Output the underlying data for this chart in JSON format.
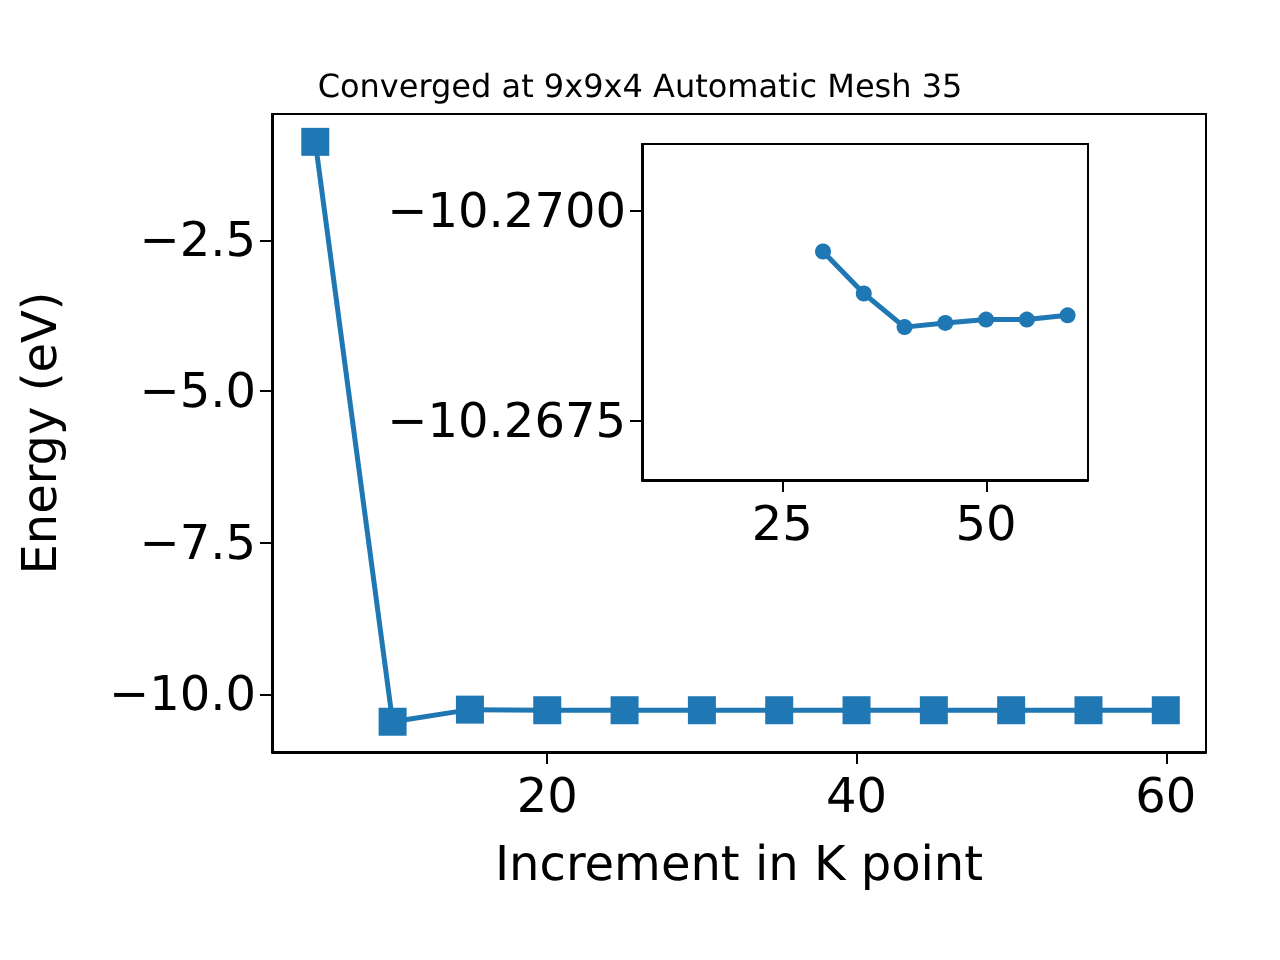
{
  "chart_data": [
    {
      "type": "line",
      "title": "Converged at 9x9x4 Automatic Mesh 35",
      "xlabel": "Increment in K point",
      "ylabel": "Energy (eV)",
      "x": [
        5,
        10,
        15,
        20,
        25,
        30,
        35,
        40,
        45,
        50,
        55,
        60
      ],
      "series": [
        {
          "color": "#1f77b4",
          "values": [
            -0.88,
            -10.46,
            -10.26,
            -10.27,
            -10.27,
            -10.27,
            -10.27,
            -10.27,
            -10.27,
            -10.27,
            -10.27,
            -10.27
          ]
        }
      ],
      "xlim": [
        2.2,
        62.6
      ],
      "ylim": [
        -10.96,
        -0.42
      ],
      "xticks": [
        20,
        40,
        60
      ],
      "yticks": [
        {
          "value": -10,
          "label": "−10.0"
        },
        -7.5,
        {
          "value": -5,
          "label": "−5.0"
        },
        -2.5
      ],
      "marker": "square",
      "line_style": "solid",
      "grid": false
    },
    {
      "type": "line",
      "x": [
        30,
        35,
        40,
        45,
        50,
        55,
        60
      ],
      "series": [
        {
          "color": "#1f77b4",
          "values": [
            -10.26952,
            -10.26902,
            -10.26862,
            -10.26867,
            -10.26871,
            -10.26871,
            -10.26876
          ]
        }
      ],
      "xlim": [
        7.8,
        62.5
      ],
      "ylim": [
        -10.2668,
        -10.2708
      ],
      "xticks": [
        25,
        50
      ],
      "yticks": [
        {
          "value": -10.27,
          "label": "−10.2700"
        },
        -10.2675
      ],
      "marker": "circle",
      "line_style": "solid",
      "grid": false
    }
  ]
}
